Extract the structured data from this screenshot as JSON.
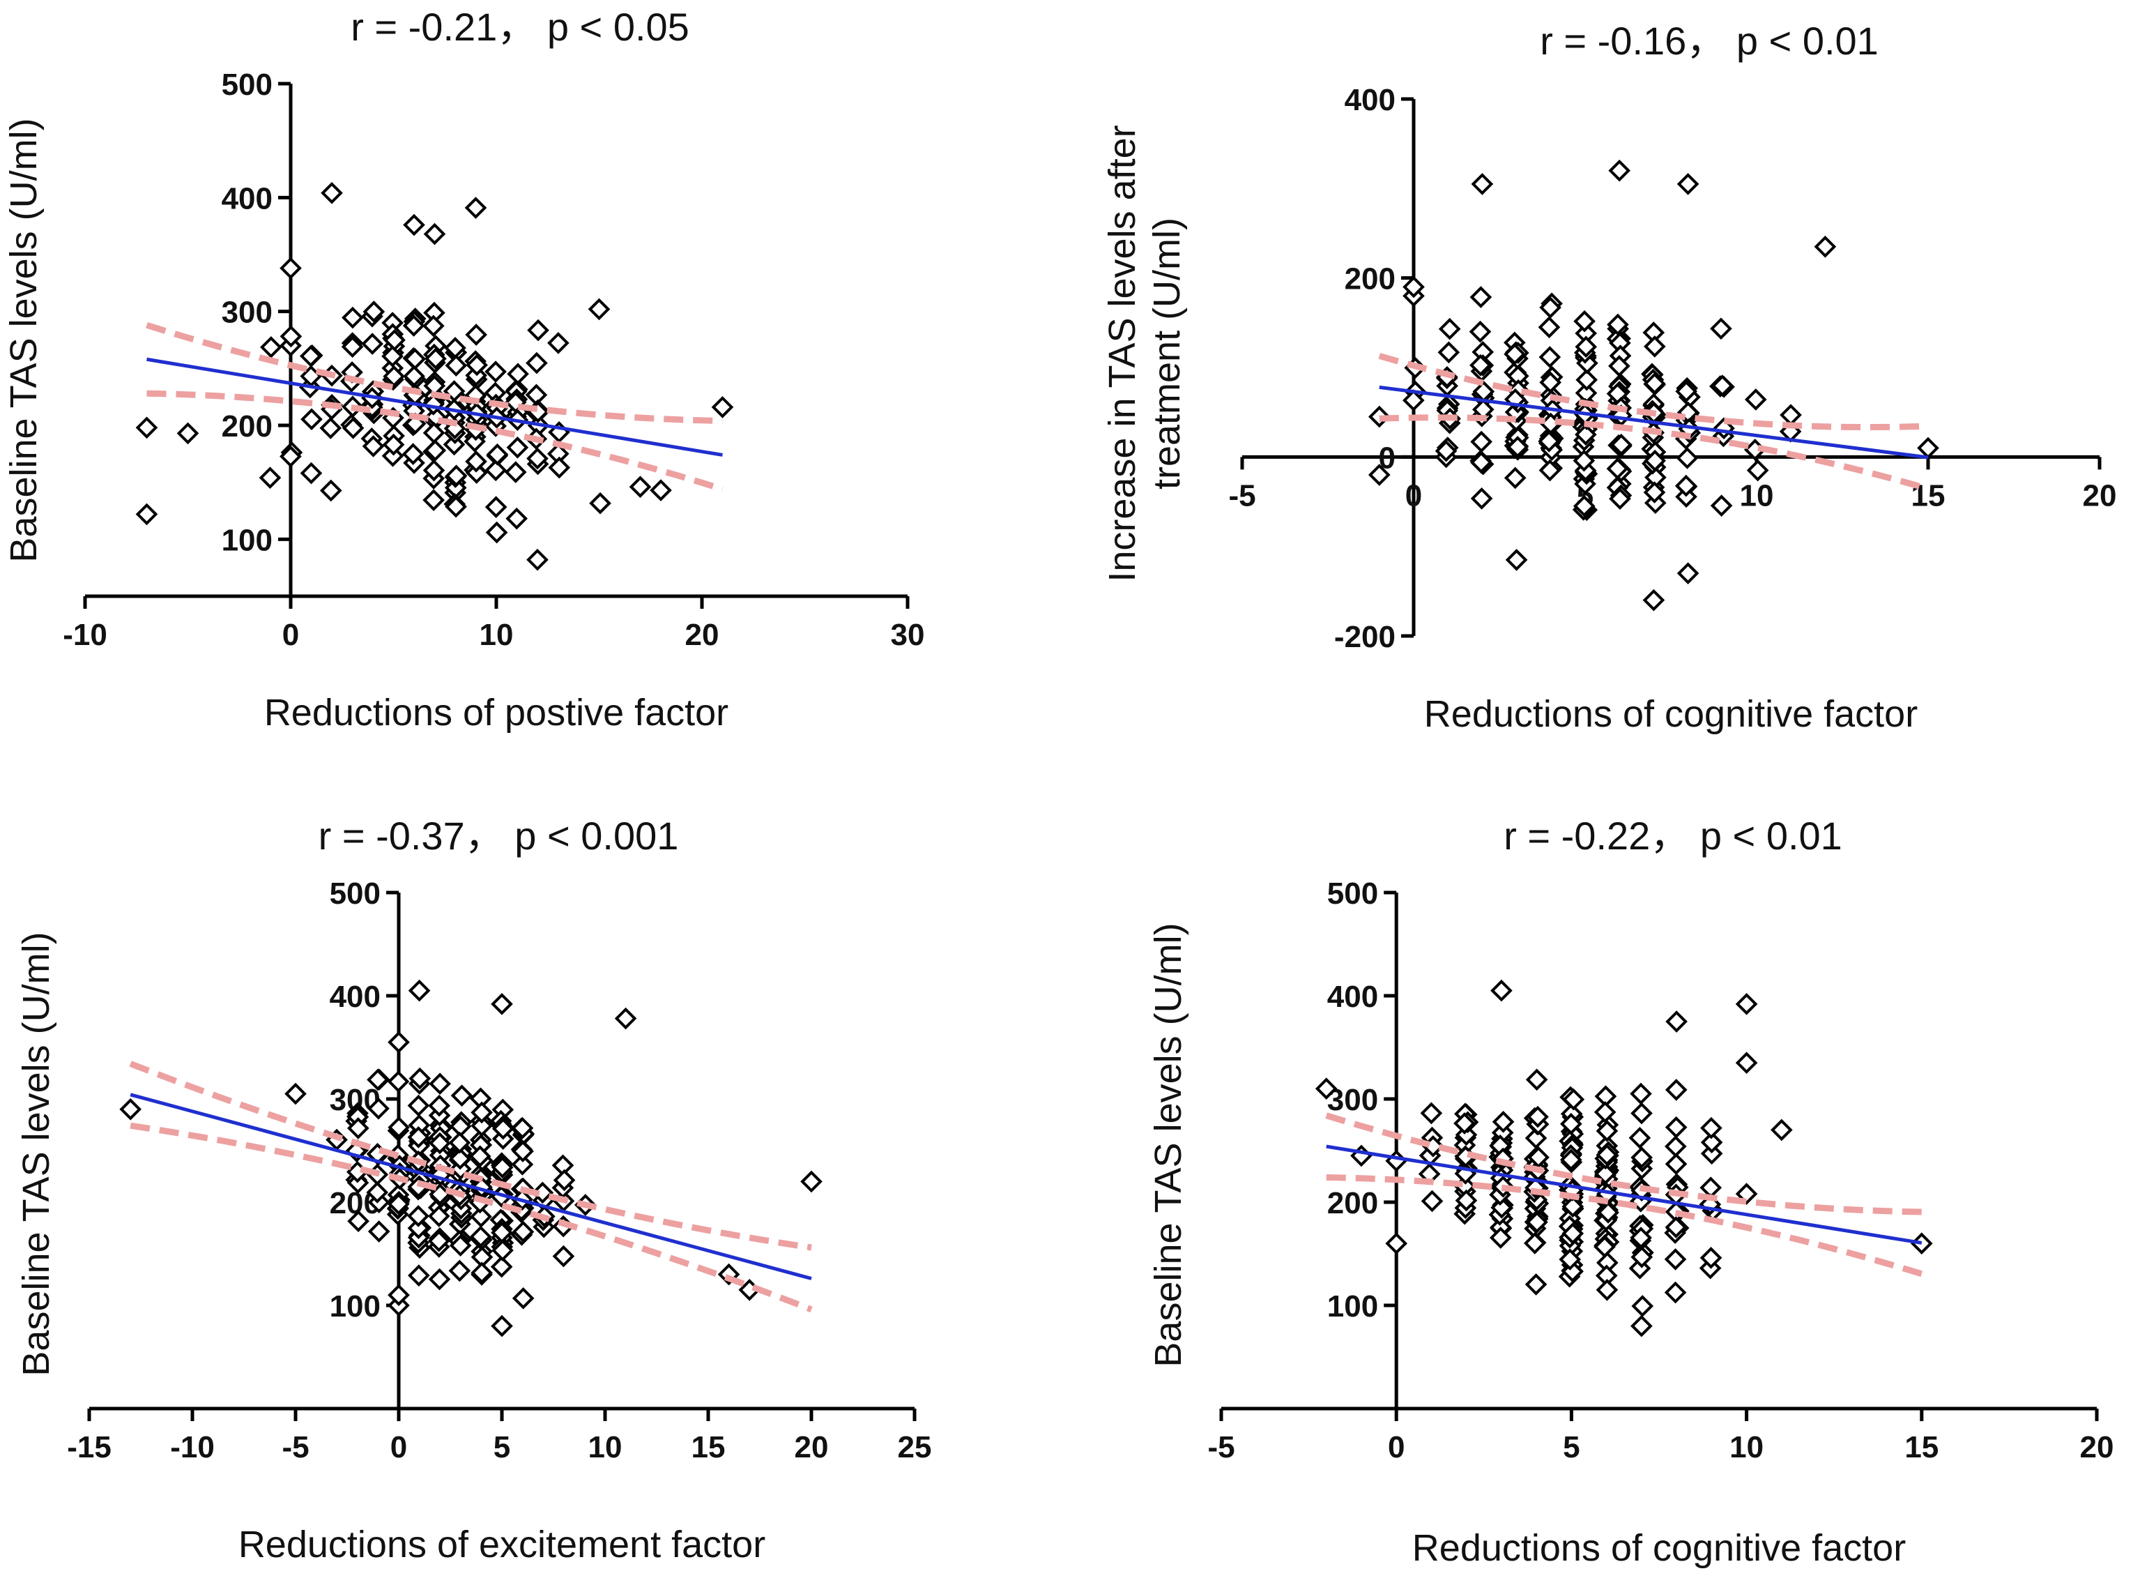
{
  "chart_data": [
    {
      "type": "scatter",
      "title": "r = -0.21，  p < 0.05",
      "xlabel": "Reductions of postive factor",
      "ylabel": [
        "Baseline TAS levels (U/ml)"
      ],
      "xlim": [
        -10,
        30
      ],
      "ylim": [
        50,
        500
      ],
      "xticks": [
        -10,
        0,
        10,
        20,
        30
      ],
      "yticks": [
        100,
        200,
        300,
        400,
        500
      ],
      "x_axis_at_y": 50,
      "y_axis_at_x": 0,
      "seed": 11,
      "cluster": {
        "x_center": 7,
        "x_spread": 5,
        "x_range": [
          -7,
          21
        ],
        "n": 170
      },
      "fit": {
        "intercept": 237,
        "slope": -3.0,
        "ci_at_min": 30,
        "ci_at_center": 11,
        "x_range": [
          -7,
          21
        ]
      },
      "points": [
        [
          -7,
          122
        ],
        [
          -7,
          198
        ],
        [
          -5,
          193
        ],
        [
          -1,
          154
        ],
        [
          0,
          338
        ],
        [
          0,
          270
        ],
        [
          2,
          404
        ],
        [
          9,
          391
        ],
        [
          6,
          376
        ],
        [
          7,
          368
        ],
        [
          12,
          82
        ],
        [
          15,
          302
        ],
        [
          21,
          216
        ],
        [
          18,
          143
        ],
        [
          17,
          146
        ],
        [
          1,
          158
        ]
      ]
    },
    {
      "type": "scatter",
      "title": "r = -0.16，  p < 0.01",
      "xlabel": "Reductions of cognitive factor",
      "ylabel": [
        "Increase in TAS levels after",
        "treatment (U/ml)"
      ],
      "xlim": [
        -5,
        20
      ],
      "ylim": [
        -200,
        400
      ],
      "xticks": [
        -5,
        0,
        5,
        10,
        15,
        20
      ],
      "yticks": [
        -200,
        0,
        200,
        400
      ],
      "x_axis_at_y": 0,
      "y_axis_at_x": 0,
      "seed": 23,
      "cluster": {
        "x_center": 5,
        "x_spread": 3.5,
        "x_range": [
          -1,
          12
        ],
        "n": 200
      },
      "fit": {
        "intercept": 73,
        "slope": -4.9,
        "ci_at_min": 35,
        "ci_at_center": 10,
        "x_range": [
          -1,
          15
        ]
      },
      "points": [
        [
          -1,
          45
        ],
        [
          -1,
          -20
        ],
        [
          0,
          180
        ],
        [
          0,
          190
        ],
        [
          6,
          320
        ],
        [
          8,
          305
        ],
        [
          12,
          235
        ],
        [
          15,
          10
        ],
        [
          7,
          -160
        ],
        [
          8,
          -130
        ],
        [
          3,
          -115
        ],
        [
          2,
          305
        ]
      ]
    },
    {
      "type": "scatter",
      "title": "r = -0.37，  p < 0.001",
      "xlabel": "Reductions of excitement factor",
      "ylabel": [
        "Baseline TAS levels (U/ml)"
      ],
      "xlim": [
        -15,
        25
      ],
      "ylim": [
        0,
        500
      ],
      "xticks": [
        -15,
        -10,
        -5,
        0,
        5,
        10,
        15,
        20,
        25
      ],
      "yticks": [
        100,
        200,
        300,
        400,
        500
      ],
      "x_axis_at_y": 0,
      "y_axis_at_x": 0,
      "seed": 37,
      "cluster": {
        "x_center": 3,
        "x_spread": 4,
        "x_range": [
          -3,
          17
        ],
        "n": 200
      },
      "fit": {
        "intercept": 234,
        "slope": -5.4,
        "ci_at_min": 30,
        "ci_at_center": 10,
        "x_range": [
          -13,
          20
        ]
      },
      "points": [
        [
          -13,
          290
        ],
        [
          -5,
          305
        ],
        [
          0,
          355
        ],
        [
          1,
          405
        ],
        [
          5,
          392
        ],
        [
          11,
          378
        ],
        [
          20,
          220
        ],
        [
          5,
          80
        ],
        [
          0,
          100
        ],
        [
          0,
          110
        ],
        [
          17,
          115
        ],
        [
          16,
          130
        ]
      ]
    },
    {
      "type": "scatter",
      "title": "r = -0.22，  p < 0.01",
      "xlabel": "Reductions of cognitive factor",
      "ylabel": [
        "Baseline TAS levels (U/ml)"
      ],
      "xlim": [
        -5,
        20
      ],
      "ylim": [
        0,
        500
      ],
      "xticks": [
        -5,
        0,
        5,
        10,
        15,
        20
      ],
      "yticks": [
        100,
        200,
        300,
        400,
        500
      ],
      "x_axis_at_y": 0,
      "y_axis_at_x": 0,
      "seed": 53,
      "cluster": {
        "x_center": 5,
        "x_spread": 3,
        "x_range": [
          0,
          12
        ],
        "n": 220
      },
      "fit": {
        "intercept": 243,
        "slope": -5.5,
        "ci_at_min": 30,
        "ci_at_center": 9,
        "x_range": [
          -2,
          15
        ]
      },
      "points": [
        [
          -2,
          310
        ],
        [
          -1,
          245
        ],
        [
          0,
          160
        ],
        [
          0,
          240
        ],
        [
          3,
          405
        ],
        [
          8,
          375
        ],
        [
          10,
          392
        ],
        [
          10,
          335
        ],
        [
          15,
          160
        ],
        [
          7,
          80
        ],
        [
          11,
          270
        ]
      ]
    }
  ]
}
